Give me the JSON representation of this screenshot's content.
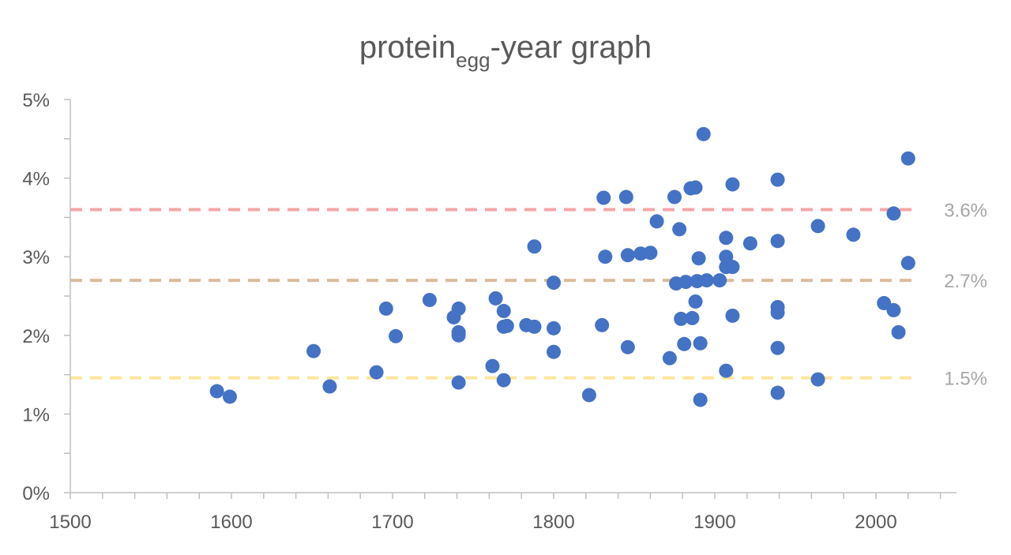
{
  "chart_data": {
    "type": "scatter",
    "title": "protein",
    "title_subscript": "egg",
    "title_suffix": "-year graph",
    "xlabel": "",
    "ylabel": "",
    "xlim": [
      1500,
      2050
    ],
    "ylim": [
      0,
      0.05
    ],
    "x_ticks": [
      1500,
      1600,
      1700,
      1800,
      1900,
      2000
    ],
    "x_tick_labels": [
      "1500",
      "1600",
      "1700",
      "1800",
      "1900",
      "2000"
    ],
    "y_ticks": [
      0,
      0.01,
      0.02,
      0.03,
      0.04,
      0.05
    ],
    "y_tick_labels": [
      "0%",
      "1%",
      "2%",
      "3%",
      "4%",
      "5%"
    ],
    "grid": false,
    "legend": "none",
    "point_color": "#4472C4",
    "axis_color": "#BFBFBF",
    "reference_lines": [
      {
        "value": 0.036,
        "label": "3.6%",
        "color": "#F4A6A6"
      },
      {
        "value": 0.027,
        "label": "2.7%",
        "color": "#D9BC9C"
      },
      {
        "value": 0.0146,
        "label": "1.5%",
        "color": "#FFE699"
      }
    ],
    "series": [
      {
        "points": [
          [
            1591,
            0.0129
          ],
          [
            1599,
            0.0122
          ],
          [
            1651,
            0.018
          ],
          [
            1661,
            0.0135
          ],
          [
            1690,
            0.0153
          ],
          [
            1696,
            0.0234
          ],
          [
            1702,
            0.0199
          ],
          [
            1723,
            0.0245
          ],
          [
            1738,
            0.0223
          ],
          [
            1741,
            0.0234
          ],
          [
            1741,
            0.0204
          ],
          [
            1741,
            0.02
          ],
          [
            1741,
            0.014
          ],
          [
            1762,
            0.0161
          ],
          [
            1764,
            0.0247
          ],
          [
            1769,
            0.0231
          ],
          [
            1769,
            0.0211
          ],
          [
            1769,
            0.0143
          ],
          [
            1771,
            0.0212
          ],
          [
            1783,
            0.0213
          ],
          [
            1788,
            0.0313
          ],
          [
            1788,
            0.0211
          ],
          [
            1800,
            0.0267
          ],
          [
            1800,
            0.0209
          ],
          [
            1800,
            0.0179
          ],
          [
            1822,
            0.0124
          ],
          [
            1830,
            0.0213
          ],
          [
            1831,
            0.0375
          ],
          [
            1832,
            0.03
          ],
          [
            1845,
            0.0376
          ],
          [
            1846,
            0.0302
          ],
          [
            1846,
            0.0185
          ],
          [
            1854,
            0.0304
          ],
          [
            1860,
            0.0305
          ],
          [
            1864,
            0.0345
          ],
          [
            1872,
            0.0171
          ],
          [
            1875,
            0.0376
          ],
          [
            1876,
            0.0266
          ],
          [
            1878,
            0.0335
          ],
          [
            1879,
            0.0221
          ],
          [
            1881,
            0.0189
          ],
          [
            1882,
            0.0268
          ],
          [
            1885,
            0.0387
          ],
          [
            1886,
            0.0222
          ],
          [
            1888,
            0.0388
          ],
          [
            1888,
            0.0243
          ],
          [
            1889,
            0.0269
          ],
          [
            1890,
            0.0298
          ],
          [
            1891,
            0.019
          ],
          [
            1891,
            0.0118
          ],
          [
            1893,
            0.0456
          ],
          [
            1895,
            0.027
          ],
          [
            1903,
            0.027
          ],
          [
            1907,
            0.0324
          ],
          [
            1907,
            0.03
          ],
          [
            1907,
            0.0287
          ],
          [
            1907,
            0.0155
          ],
          [
            1911,
            0.0392
          ],
          [
            1911,
            0.0287
          ],
          [
            1911,
            0.0225
          ],
          [
            1922,
            0.0317
          ],
          [
            1939,
            0.0398
          ],
          [
            1939,
            0.032
          ],
          [
            1939,
            0.0236
          ],
          [
            1939,
            0.0229
          ],
          [
            1939,
            0.0184
          ],
          [
            1939,
            0.0127
          ],
          [
            1964,
            0.0339
          ],
          [
            1964,
            0.0144
          ],
          [
            1986,
            0.0328
          ],
          [
            2005,
            0.0241
          ],
          [
            2011,
            0.0355
          ],
          [
            2011,
            0.0232
          ],
          [
            2014,
            0.0204
          ],
          [
            2020,
            0.0425
          ],
          [
            2020,
            0.0292
          ]
        ]
      }
    ]
  }
}
